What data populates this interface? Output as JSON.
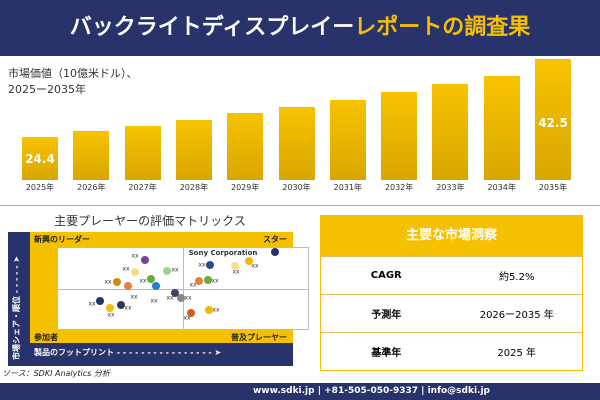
{
  "header": {
    "title_main": "バックライトディスプレイー",
    "title_accent": "レポートの調査果"
  },
  "chart_data": [
    {
      "type": "bar",
      "ylabel_line1": "市場価値（10億米ドル）、",
      "ylabel_line2": "2025ー2035年",
      "categories": [
        "2025年",
        "2026年",
        "2027年",
        "2028年",
        "2029年",
        "2030年",
        "2031年",
        "2032年",
        "2033年",
        "2034年",
        "2035年"
      ],
      "values": [
        24.4,
        25.7,
        27.0,
        28.4,
        29.9,
        31.4,
        33.0,
        34.8,
        36.6,
        38.5,
        42.5
      ],
      "data_labels": {
        "first": "24.4",
        "last": "42.5"
      },
      "bar_color": "#f5c000"
    },
    {
      "type": "scatter",
      "title": "主要プレーヤーの評価マトリックス",
      "quadrants": {
        "top_left": "新興のリーダー",
        "top_right": "スター",
        "bottom_left": "参加者",
        "bottom_right": "普及プレーヤー"
      },
      "xlabel": "製品のフットプリント",
      "ylabel": "市場シェア・順位",
      "points": [
        {
          "label": "Sony Corporation",
          "color": "#28336b"
        },
        {
          "label": "xx",
          "color": "#7b3fa0"
        },
        {
          "label": "xx",
          "color": "#f4e07a"
        },
        {
          "label": "xx",
          "color": "#c89010"
        },
        {
          "label": "xx",
          "color": "#6aaa3a"
        },
        {
          "label": "xx",
          "color": "#a6d08a"
        },
        {
          "label": "xx",
          "color": "#2f4b8f"
        },
        {
          "label": "xx",
          "color": "#f6e08c"
        },
        {
          "label": "xx",
          "color": "#f5b800"
        },
        {
          "label": "xx",
          "color": "#e8803a"
        },
        {
          "label": "xx",
          "color": "#6aaa3a"
        },
        {
          "label": "xx",
          "color": "#e8803a"
        },
        {
          "label": "xx",
          "color": "#1e7fd0"
        },
        {
          "label": "xx",
          "color": "#28336b"
        },
        {
          "label": "xx",
          "color": "#f5c000"
        },
        {
          "label": "xx",
          "color": "#303850"
        },
        {
          "label": "xx",
          "color": "#3a4566"
        },
        {
          "label": "xx",
          "color": "#888888"
        },
        {
          "label": "xx",
          "color": "#d06020"
        },
        {
          "label": "xx",
          "color": "#f5b800"
        }
      ]
    }
  ],
  "source": "ソース：SDKI Analytics 分析",
  "table": {
    "title": "主要な市場洞察",
    "rows": [
      {
        "key": "CAGR",
        "value": "約5.2%"
      },
      {
        "key": "予測年",
        "value": "2026ー2035 年"
      },
      {
        "key": "基準年",
        "value": "2025 年"
      }
    ]
  },
  "footer": "www.sdki.jp | +81-505-050-9337 | info@sdki.jp"
}
